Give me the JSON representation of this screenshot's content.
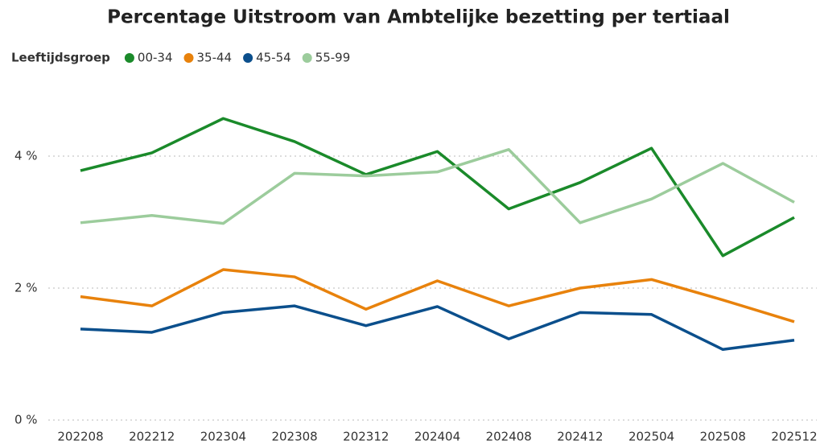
{
  "chart_data": {
    "type": "line",
    "title": "Percentage Uitstroom van Ambtelijke bezetting per tertiaal",
    "legend_title": "Leeftijdsgroep",
    "categories": [
      "202208",
      "202212",
      "202304",
      "202308",
      "202312",
      "202404",
      "202408",
      "202412",
      "202504",
      "202508",
      "202512"
    ],
    "series": [
      {
        "name": "00-34",
        "color": "#1a8a2a",
        "values": [
          3.78,
          4.05,
          4.57,
          4.22,
          3.72,
          4.07,
          3.2,
          3.6,
          4.12,
          2.49,
          3.07
        ]
      },
      {
        "name": "35-44",
        "color": "#e8820c",
        "values": [
          1.87,
          1.73,
          2.28,
          2.17,
          1.68,
          2.11,
          1.73,
          2.0,
          2.13,
          1.82,
          1.49
        ]
      },
      {
        "name": "45-54",
        "color": "#0b4f8c",
        "values": [
          1.38,
          1.33,
          1.63,
          1.73,
          1.43,
          1.72,
          1.23,
          1.63,
          1.6,
          1.07,
          1.21
        ]
      },
      {
        "name": "55-99",
        "color": "#9ccc9c",
        "values": [
          2.99,
          3.1,
          2.98,
          3.74,
          3.7,
          3.76,
          4.1,
          2.99,
          3.35,
          3.89,
          3.3
        ]
      }
    ],
    "ylim": [
      0,
      5
    ],
    "yticks": [
      {
        "value": 0,
        "label": "0 %"
      },
      {
        "value": 2,
        "label": "2 %"
      },
      {
        "value": 4,
        "label": "4 %"
      }
    ],
    "grid": true
  }
}
